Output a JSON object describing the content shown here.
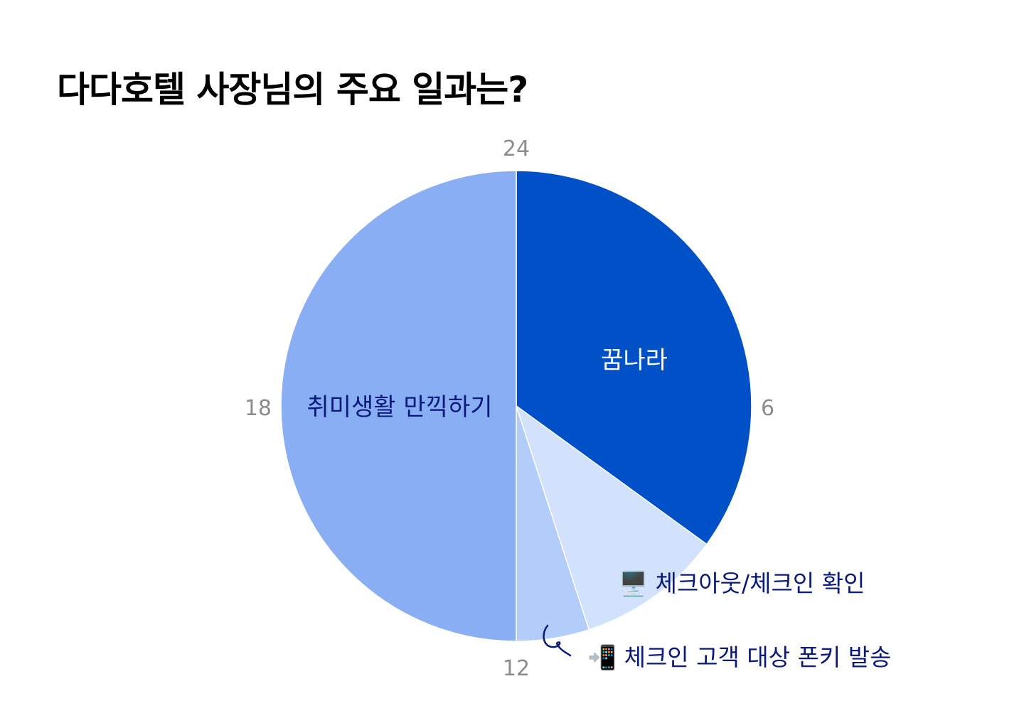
{
  "chart_data": {
    "type": "pie",
    "title": "다다호텔 사장님의 주요 일과는?",
    "clock_labels": [
      "24",
      "6",
      "12",
      "18"
    ],
    "slices": [
      {
        "label": "꿈나라",
        "value": 35,
        "color": "#0050c7",
        "text_color": "#ffffff"
      },
      {
        "label": "🖥️ 체크아웃/체크인 확인",
        "value": 10,
        "color": "#d2e2fd",
        "text_color": "#0a1a7a"
      },
      {
        "label": "📲 체크인 고객 대상 폰키 발송",
        "value": 5,
        "color": "#b3cdfa",
        "text_color": "#0a1a7a"
      },
      {
        "label": "취미생활 만끽하기",
        "value": 50,
        "color": "#8aaef3",
        "text_color": "#0a1a7a"
      }
    ]
  }
}
